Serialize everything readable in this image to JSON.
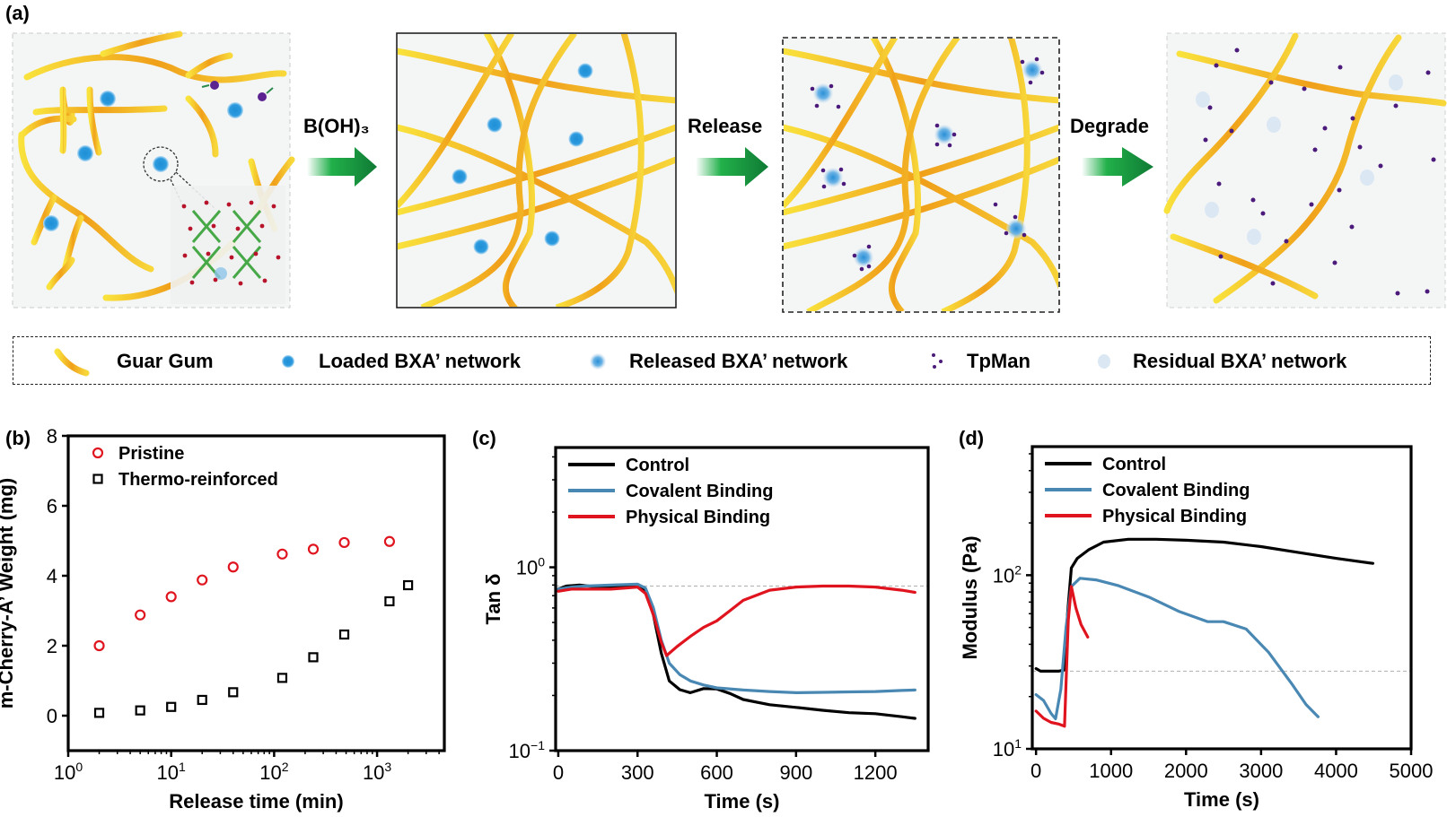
{
  "panel_labels": {
    "a": "(a)",
    "b": "(b)",
    "c": "(c)",
    "d": "(d)"
  },
  "schematic": {
    "steps": [
      {
        "arrow_label": "B(OH)₃"
      },
      {
        "arrow_label": "Release"
      },
      {
        "arrow_label": "Degrade"
      }
    ],
    "legend": [
      {
        "label": "Guar Gum",
        "icon": "guar-gum-fiber-icon"
      },
      {
        "label": "Loaded BXA’ network",
        "icon": "loaded-network-dot-icon"
      },
      {
        "label": "Released BXA’ network",
        "icon": "released-network-dot-icon"
      },
      {
        "label": "TpMan",
        "icon": "tpman-dots-icon"
      },
      {
        "label": "Residual BXA’ network",
        "icon": "residual-network-dot-icon"
      }
    ],
    "colors": {
      "fiber_light": "#f7e03a",
      "fiber_dark": "#ef9a12",
      "loaded": "#1f8fd6",
      "residual": "#d9e9f6",
      "tpman": "#4b1a7a",
      "arrow": "#1a9a3c"
    }
  },
  "chart_data": [
    {
      "id": "b",
      "type": "scatter",
      "title": "",
      "xlabel": "Release time (min)",
      "ylabel": "m-Cherry-A’ Weight (mg)",
      "xscale": "log",
      "xlim": [
        1,
        4500
      ],
      "ylim": [
        -1,
        8
      ],
      "xticks": [
        {
          "v": 1,
          "label": "10",
          "exp": "0"
        },
        {
          "v": 10,
          "label": "10",
          "exp": "1"
        },
        {
          "v": 100,
          "label": "10",
          "exp": "2"
        },
        {
          "v": 1000,
          "label": "10",
          "exp": "3"
        }
      ],
      "yticks": [
        0,
        2,
        4,
        6,
        8
      ],
      "legend_position": "top-left",
      "series": [
        {
          "name": "Pristine",
          "marker": "circle-open",
          "color": "#e0141e",
          "x": [
            2,
            5,
            10,
            20,
            40,
            120,
            240,
            480,
            1320
          ],
          "y": [
            2.0,
            2.88,
            3.4,
            3.88,
            4.25,
            4.62,
            4.76,
            4.95,
            4.98
          ]
        },
        {
          "name": "Thermo-reinforced",
          "marker": "square-open",
          "color": "#000000",
          "x": [
            2,
            5,
            10,
            20,
            40,
            120,
            240,
            480,
            1320,
            2000
          ],
          "y": [
            0.08,
            0.15,
            0.25,
            0.45,
            0.67,
            1.08,
            1.67,
            2.32,
            3.27,
            3.73
          ]
        }
      ]
    },
    {
      "id": "c",
      "type": "line",
      "title": "",
      "xlabel": "Time (s)",
      "ylabel": "Tan δ",
      "yscale": "log",
      "xlim": [
        -10,
        1400
      ],
      "ylim": [
        0.1,
        4.5
      ],
      "xticks": [
        0,
        300,
        600,
        900,
        1200
      ],
      "yticks": [
        {
          "v": 1,
          "label": "10",
          "exp": "0"
        },
        {
          "v": 0.1,
          "label": "10",
          "exp": "−1"
        }
      ],
      "reference_line": 0.79,
      "legend_position": "top-left",
      "series": [
        {
          "name": "Control",
          "color": "#000000",
          "x": [
            0,
            30,
            80,
            150,
            250,
            300,
            330,
            360,
            390,
            420,
            460,
            500,
            550,
            600,
            650,
            700,
            800,
            900,
            1000,
            1100,
            1200,
            1300,
            1350
          ],
          "y": [
            0.76,
            0.79,
            0.8,
            0.78,
            0.79,
            0.8,
            0.74,
            0.55,
            0.34,
            0.24,
            0.215,
            0.207,
            0.218,
            0.217,
            0.205,
            0.19,
            0.178,
            0.172,
            0.166,
            0.161,
            0.159,
            0.153,
            0.15
          ]
        },
        {
          "name": "Covalent Binding",
          "color": "#4a88b4",
          "x": [
            0,
            50,
            100,
            200,
            300,
            330,
            360,
            390,
            420,
            460,
            500,
            550,
            600,
            700,
            800,
            900,
            1000,
            1100,
            1200,
            1300,
            1350
          ],
          "y": [
            0.76,
            0.78,
            0.79,
            0.8,
            0.81,
            0.77,
            0.6,
            0.4,
            0.3,
            0.26,
            0.24,
            0.228,
            0.22,
            0.214,
            0.21,
            0.207,
            0.208,
            0.209,
            0.21,
            0.213,
            0.214
          ]
        },
        {
          "name": "Physical Binding",
          "color": "#e0141e",
          "x": [
            0,
            50,
            100,
            200,
            300,
            330,
            360,
            390,
            410,
            450,
            500,
            550,
            600,
            650,
            700,
            800,
            900,
            1000,
            1100,
            1200,
            1300,
            1350
          ],
          "y": [
            0.74,
            0.76,
            0.76,
            0.76,
            0.78,
            0.72,
            0.55,
            0.39,
            0.33,
            0.37,
            0.42,
            0.47,
            0.51,
            0.58,
            0.66,
            0.75,
            0.78,
            0.79,
            0.79,
            0.78,
            0.75,
            0.73
          ]
        }
      ]
    },
    {
      "id": "d",
      "type": "line",
      "title": "",
      "xlabel": "Time (s)",
      "ylabel": "Modulus (Pa)",
      "yscale": "log",
      "xlim": [
        -50,
        5000
      ],
      "ylim": [
        10,
        550
      ],
      "xticks": [
        0,
        1000,
        2000,
        3000,
        4000,
        5000
      ],
      "yticks": [
        {
          "v": 100,
          "label": "10",
          "exp": "2"
        },
        {
          "v": 10,
          "label": "10",
          "exp": "1"
        }
      ],
      "reference_line": 28,
      "legend_position": "top-left",
      "series": [
        {
          "name": "Control",
          "color": "#000000",
          "x": [
            0,
            60,
            150,
            300,
            380,
            420,
            470,
            550,
            700,
            900,
            1230,
            1600,
            2000,
            2500,
            3000,
            3500,
            4000,
            4490
          ],
          "y": [
            29,
            28,
            28,
            28,
            28.5,
            60,
            110,
            125,
            140,
            155,
            161,
            161,
            159,
            155,
            146,
            135,
            125,
            117
          ]
        },
        {
          "name": "Covalent Binding",
          "color": "#4a88b4",
          "x": [
            0,
            100,
            200,
            260,
            330,
            400,
            470,
            585,
            800,
            1100,
            1500,
            1900,
            2290,
            2500,
            2800,
            3100,
            3400,
            3600,
            3760
          ],
          "y": [
            20.5,
            19,
            16,
            14.9,
            22,
            50,
            86,
            96,
            94,
            87,
            75,
            62,
            54,
            54,
            49,
            36,
            24,
            18,
            15.3
          ]
        },
        {
          "name": "Physical Binding",
          "color": "#e0141e",
          "x": [
            0,
            100,
            200,
            300,
            380,
            430,
            470,
            530,
            600,
            690
          ],
          "y": [
            16.5,
            15,
            14.2,
            13.9,
            13.5,
            55,
            86,
            65,
            52,
            44
          ]
        }
      ]
    }
  ]
}
